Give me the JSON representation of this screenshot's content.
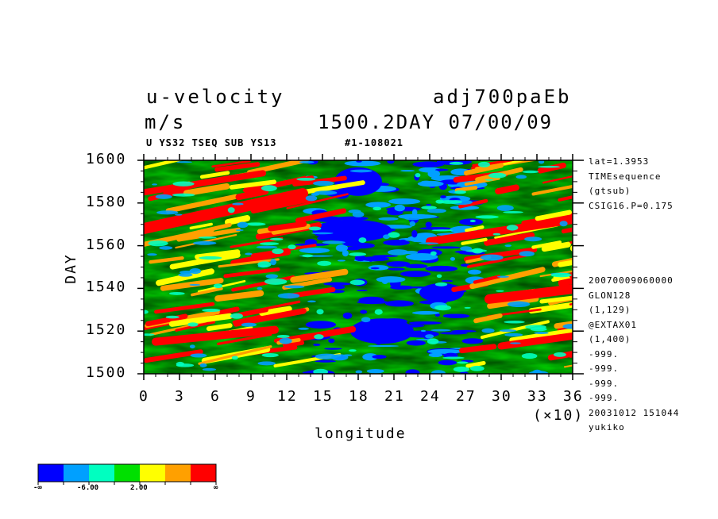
{
  "chart_data": {
    "type": "heatmap",
    "title_left": "u-velocity",
    "title_right": "adj700paEb",
    "units": "m/s",
    "subtitle_right": "1500.2DAY 07/00/09",
    "caption_left": "U YS32 TSEQ SUB YS13",
    "caption_right": "#1-108021",
    "xlabel": "longitude",
    "x_multiplier": "(×10)",
    "ylabel": "DAY",
    "xlim": [
      0,
      36
    ],
    "ylim": [
      1500,
      1600
    ],
    "xticks": [
      "0",
      "3",
      "6",
      "9",
      "12",
      "15",
      "18",
      "21",
      "24",
      "27",
      "30",
      "33",
      "36"
    ],
    "yticks": [
      "1500",
      "1520",
      "1540",
      "1560",
      "1580",
      "1600"
    ],
    "side_info_top": [
      "lat=1.3953",
      "TIMEsequence",
      "(gtsub)",
      "CSIG16.P=0.175"
    ],
    "side_info_bottom": [
      "20070009060000",
      "GLON128",
      "(1,129)",
      "@EXTAX01",
      "(1,400)",
      "-999.",
      "-999.",
      "-999.",
      "-999.",
      "20031012 151044",
      "yukiko"
    ],
    "colorbar": {
      "colors": [
        "#0000ff",
        "#00a0ff",
        "#00ffc0",
        "#00e000",
        "#ffff00",
        "#ffa000",
        "#ff0000"
      ],
      "labels": [
        "-∞",
        "-6.00",
        "2.00",
        "∞"
      ]
    },
    "pattern_note": "negative (blue) band centered near longitude 150-270; positive (red) eastward-tilted streaks on both flanks"
  }
}
